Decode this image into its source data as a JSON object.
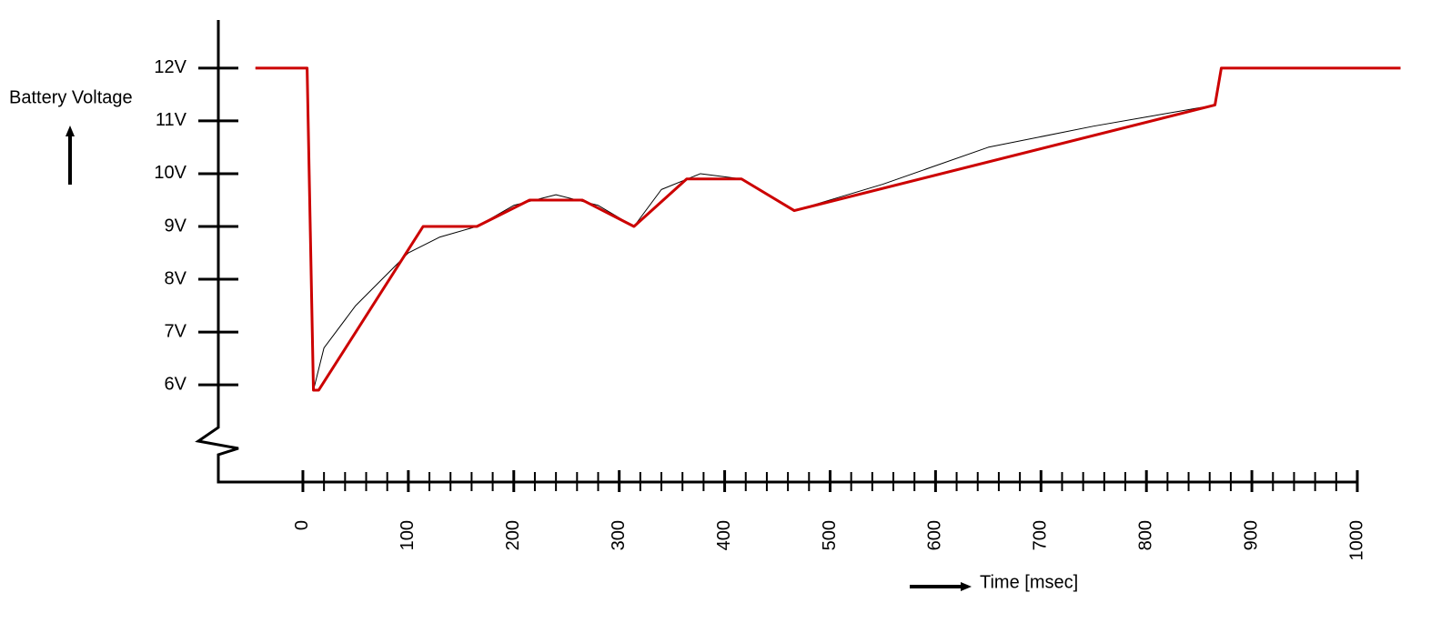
{
  "chart_data": {
    "type": "line",
    "ylabel": "Battery Voltage",
    "xlabel": "Time [msec]",
    "series": [
      {
        "color": "#000000",
        "x": [
          -45,
          4,
          10,
          20,
          50,
          80,
          100,
          130,
          165,
          200,
          240,
          280,
          314,
          340,
          377,
          416,
          440,
          466,
          550,
          650,
          750,
          865,
          871,
          1041
        ],
        "values": [
          12,
          12,
          5.9,
          6.7,
          7.5,
          8.1,
          8.5,
          8.8,
          9,
          9.4,
          9.6,
          9.4,
          9,
          9.7,
          10,
          9.9,
          9.6,
          9.3,
          9.8,
          10.5,
          10.9,
          11.3,
          12,
          12
        ]
      },
      {
        "color": "#cc0000",
        "x": [
          -45,
          4,
          10,
          15,
          114,
          165,
          215,
          265,
          314,
          364,
          416,
          466,
          865,
          871,
          1041
        ],
        "values": [
          12,
          12,
          5.9,
          5.9,
          9,
          9,
          9.5,
          9.5,
          9,
          9.9,
          9.9,
          9.3,
          11.3,
          12,
          12
        ]
      }
    ],
    "xlim": [
      -80.2,
      1000
    ],
    "ylim": [
      4.16,
      12.91
    ],
    "xticks": [
      0,
      100,
      200,
      300,
      400,
      500,
      600,
      700,
      800,
      900,
      1000
    ],
    "xticks_minor": [
      20,
      40,
      60,
      80,
      120,
      140,
      160,
      180,
      220,
      240,
      260,
      280,
      320,
      340,
      360,
      380,
      420,
      440,
      460,
      480,
      520,
      540,
      560,
      580,
      620,
      640,
      660,
      680,
      720,
      740,
      760,
      780,
      820,
      840,
      860,
      880,
      920,
      940,
      960,
      980
    ],
    "yticks": [
      {
        "value": 6,
        "label": "6V"
      },
      {
        "value": 7,
        "label": "7V"
      },
      {
        "value": 8,
        "label": "8V"
      },
      {
        "value": 9,
        "label": "9V"
      },
      {
        "value": 10,
        "label": "10V"
      },
      {
        "value": 11,
        "label": "11V"
      },
      {
        "value": 12,
        "label": "12V"
      }
    ]
  }
}
